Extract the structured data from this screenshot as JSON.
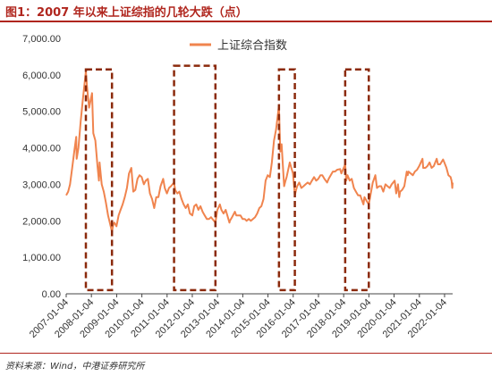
{
  "figure": {
    "title": "图1：2007 年以来上证综指的几轮大跌（点）",
    "source": "资料来源：Wind，中港证券研究所"
  },
  "colors": {
    "accent": "#b0261e",
    "line": "#f0844e",
    "box": "#8b2a0c"
  },
  "chart_data": {
    "type": "line",
    "title": "图1：2007 年以来上证综指的几轮大跌（点）",
    "xlabel": "",
    "ylabel": "",
    "x_ticks": [
      "2007-01-04",
      "2008-01-04",
      "2009-01-04",
      "2010-01-04",
      "2011-01-04",
      "2012-01-04",
      "2013-01-04",
      "2014-01-04",
      "2015-01-04",
      "2016-01-04",
      "2017-01-04",
      "2018-01-04",
      "2019-01-04",
      "2020-01-04",
      "2021-01-04",
      "2022-01-04"
    ],
    "y_ticks": [
      "0.00",
      "1,000.00",
      "2,000.00",
      "3,000.00",
      "4,000.00",
      "5,000.00",
      "6,000.00",
      "7,000.00"
    ],
    "ylim": [
      0,
      7000
    ],
    "xlim": [
      "2007-01-04",
      "2022-05-01"
    ],
    "legend_position": "top-center",
    "grid": false,
    "series": [
      {
        "name": "上证综合指数",
        "points": [
          [
            "2007-01-04",
            2700
          ],
          [
            "2007-02-01",
            2800
          ],
          [
            "2007-03-01",
            3000
          ],
          [
            "2007-04-01",
            3450
          ],
          [
            "2007-05-01",
            3900
          ],
          [
            "2007-05-29",
            4300
          ],
          [
            "2007-06-05",
            3700
          ],
          [
            "2007-07-01",
            4000
          ],
          [
            "2007-08-01",
            4700
          ],
          [
            "2007-09-01",
            5300
          ],
          [
            "2007-10-16",
            6100
          ],
          [
            "2007-11-01",
            5700
          ],
          [
            "2007-12-01",
            5100
          ],
          [
            "2008-01-14",
            5500
          ],
          [
            "2008-02-01",
            4400
          ],
          [
            "2008-03-01",
            4200
          ],
          [
            "2008-04-01",
            3500
          ],
          [
            "2008-04-22",
            3100
          ],
          [
            "2008-05-01",
            3600
          ],
          [
            "2008-06-01",
            3000
          ],
          [
            "2008-07-01",
            2800
          ],
          [
            "2008-08-01",
            2500
          ],
          [
            "2008-09-01",
            2150
          ],
          [
            "2008-10-28",
            1700
          ],
          [
            "2008-11-15",
            1900
          ],
          [
            "2008-12-01",
            1950
          ],
          [
            "2009-01-01",
            1850
          ],
          [
            "2009-02-01",
            2150
          ],
          [
            "2009-03-01",
            2300
          ],
          [
            "2009-04-01",
            2450
          ],
          [
            "2009-05-01",
            2650
          ],
          [
            "2009-06-01",
            2900
          ],
          [
            "2009-07-01",
            3300
          ],
          [
            "2009-08-04",
            3450
          ],
          [
            "2009-09-01",
            2800
          ],
          [
            "2009-10-01",
            2850
          ],
          [
            "2009-11-01",
            3150
          ],
          [
            "2009-12-01",
            3250
          ],
          [
            "2010-01-01",
            3200
          ],
          [
            "2010-02-01",
            3000
          ],
          [
            "2010-03-01",
            3100
          ],
          [
            "2010-04-01",
            3150
          ],
          [
            "2010-05-01",
            2750
          ],
          [
            "2010-06-01",
            2600
          ],
          [
            "2010-07-02",
            2350
          ],
          [
            "2010-08-01",
            2650
          ],
          [
            "2010-09-01",
            2650
          ],
          [
            "2010-10-01",
            2950
          ],
          [
            "2010-11-08",
            3150
          ],
          [
            "2010-12-01",
            2900
          ],
          [
            "2011-01-01",
            2750
          ],
          [
            "2011-02-01",
            2900
          ],
          [
            "2011-03-01",
            2950
          ],
          [
            "2011-04-15",
            3050
          ],
          [
            "2011-05-01",
            2850
          ],
          [
            "2011-06-01",
            2750
          ],
          [
            "2011-07-01",
            2800
          ],
          [
            "2011-08-01",
            2600
          ],
          [
            "2011-09-01",
            2450
          ],
          [
            "2011-10-01",
            2350
          ],
          [
            "2011-11-01",
            2450
          ],
          [
            "2011-12-01",
            2200
          ],
          [
            "2012-01-04",
            2150
          ],
          [
            "2012-02-01",
            2400
          ],
          [
            "2012-03-01",
            2450
          ],
          [
            "2012-04-01",
            2300
          ],
          [
            "2012-05-01",
            2400
          ],
          [
            "2012-06-01",
            2250
          ],
          [
            "2012-07-01",
            2150
          ],
          [
            "2012-08-01",
            2050
          ],
          [
            "2012-09-01",
            2050
          ],
          [
            "2012-10-01",
            2100
          ],
          [
            "2012-12-04",
            1950
          ],
          [
            "2013-01-01",
            2300
          ],
          [
            "2013-02-06",
            2450
          ],
          [
            "2013-03-01",
            2300
          ],
          [
            "2013-04-01",
            2200
          ],
          [
            "2013-05-01",
            2300
          ],
          [
            "2013-06-25",
            1950
          ],
          [
            "2013-07-01",
            2000
          ],
          [
            "2013-08-01",
            2100
          ],
          [
            "2013-09-12",
            2250
          ],
          [
            "2013-10-01",
            2150
          ],
          [
            "2013-11-01",
            2150
          ],
          [
            "2013-12-01",
            2150
          ],
          [
            "2014-01-01",
            2050
          ],
          [
            "2014-02-01",
            2050
          ],
          [
            "2014-03-01",
            2000
          ],
          [
            "2014-04-01",
            2050
          ],
          [
            "2014-05-01",
            2000
          ],
          [
            "2014-06-01",
            2050
          ],
          [
            "2014-07-01",
            2100
          ],
          [
            "2014-08-01",
            2200
          ],
          [
            "2014-09-01",
            2350
          ],
          [
            "2014-10-01",
            2400
          ],
          [
            "2014-11-01",
            2600
          ],
          [
            "2014-12-01",
            3100
          ],
          [
            "2015-01-01",
            3250
          ],
          [
            "2015-02-01",
            3200
          ],
          [
            "2015-03-01",
            3600
          ],
          [
            "2015-04-01",
            4200
          ],
          [
            "2015-05-01",
            4500
          ],
          [
            "2015-06-12",
            5150
          ],
          [
            "2015-07-01",
            3900
          ],
          [
            "2015-07-20",
            4100
          ],
          [
            "2015-08-26",
            2950
          ],
          [
            "2015-09-15",
            3100
          ],
          [
            "2015-10-01",
            3200
          ],
          [
            "2015-11-15",
            3600
          ],
          [
            "2015-12-01",
            3500
          ],
          [
            "2016-01-01",
            3300
          ],
          [
            "2016-01-28",
            2700
          ],
          [
            "2016-02-15",
            2850
          ],
          [
            "2016-03-01",
            2950
          ],
          [
            "2016-04-01",
            3050
          ],
          [
            "2016-05-01",
            2900
          ],
          [
            "2016-06-01",
            2950
          ],
          [
            "2016-07-01",
            3000
          ],
          [
            "2016-08-01",
            3050
          ],
          [
            "2016-09-01",
            3000
          ],
          [
            "2016-10-01",
            3100
          ],
          [
            "2016-11-01",
            3200
          ],
          [
            "2016-12-01",
            3100
          ],
          [
            "2017-01-01",
            3150
          ],
          [
            "2017-02-01",
            3250
          ],
          [
            "2017-03-01",
            3250
          ],
          [
            "2017-04-01",
            3150
          ],
          [
            "2017-05-10",
            3050
          ],
          [
            "2017-06-01",
            3150
          ],
          [
            "2017-07-01",
            3250
          ],
          [
            "2017-08-01",
            3350
          ],
          [
            "2017-09-01",
            3350
          ],
          [
            "2017-10-01",
            3400
          ],
          [
            "2017-11-14",
            3420
          ],
          [
            "2017-12-01",
            3300
          ],
          [
            "2018-01-26",
            3550
          ],
          [
            "2018-02-09",
            3100
          ],
          [
            "2018-03-01",
            3250
          ],
          [
            "2018-04-01",
            3100
          ],
          [
            "2018-05-01",
            3150
          ],
          [
            "2018-06-01",
            2900
          ],
          [
            "2018-07-01",
            2800
          ],
          [
            "2018-08-01",
            2700
          ],
          [
            "2018-09-01",
            2700
          ],
          [
            "2018-10-18",
            2450
          ],
          [
            "2018-11-01",
            2650
          ],
          [
            "2018-12-01",
            2550
          ],
          [
            "2019-01-03",
            2450
          ],
          [
            "2019-02-01",
            2750
          ],
          [
            "2019-03-01",
            3050
          ],
          [
            "2019-04-08",
            3250
          ],
          [
            "2019-05-01",
            2900
          ],
          [
            "2019-06-01",
            2950
          ],
          [
            "2019-07-01",
            2950
          ],
          [
            "2019-08-01",
            2800
          ],
          [
            "2019-09-01",
            3000
          ],
          [
            "2019-10-01",
            2950
          ],
          [
            "2019-11-01",
            2900
          ],
          [
            "2019-12-01",
            3000
          ],
          [
            "2020-01-13",
            3100
          ],
          [
            "2020-02-03",
            2750
          ],
          [
            "2020-03-01",
            3000
          ],
          [
            "2020-03-19",
            2650
          ],
          [
            "2020-04-01",
            2800
          ],
          [
            "2020-05-01",
            2850
          ],
          [
            "2020-06-01",
            2950
          ],
          [
            "2020-07-06",
            3350
          ],
          [
            "2020-07-20",
            3250
          ],
          [
            "2020-08-01",
            3350
          ],
          [
            "2020-09-01",
            3300
          ],
          [
            "2020-10-01",
            3250
          ],
          [
            "2020-11-01",
            3350
          ],
          [
            "2020-12-01",
            3400
          ],
          [
            "2021-01-01",
            3500
          ],
          [
            "2021-02-18",
            3700
          ],
          [
            "2021-03-01",
            3450
          ],
          [
            "2021-04-01",
            3450
          ],
          [
            "2021-05-01",
            3500
          ],
          [
            "2021-06-01",
            3600
          ],
          [
            "2021-07-01",
            3450
          ],
          [
            "2021-08-01",
            3500
          ],
          [
            "2021-09-13",
            3700
          ],
          [
            "2021-10-01",
            3550
          ],
          [
            "2021-11-01",
            3550
          ],
          [
            "2021-12-13",
            3680
          ],
          [
            "2022-01-01",
            3600
          ],
          [
            "2022-02-01",
            3450
          ],
          [
            "2022-03-01",
            3250
          ],
          [
            "2022-04-01",
            3200
          ],
          [
            "2022-04-15",
            3100
          ],
          [
            "2022-04-26",
            2900
          ],
          [
            "2022-05-01",
            3050
          ]
        ]
      }
    ],
    "annotations": [
      {
        "kind": "dashed-box",
        "x_start": "2007-10-16",
        "x_end": "2008-10-28",
        "y_top": 6150,
        "y_bottom": 100
      },
      {
        "kind": "dashed-box",
        "x_start": "2011-04-15",
        "x_end": "2012-12-04",
        "y_top": 6250,
        "y_bottom": 100
      },
      {
        "kind": "dashed-box",
        "x_start": "2015-06-12",
        "x_end": "2016-01-28",
        "y_top": 6150,
        "y_bottom": 100
      },
      {
        "kind": "dashed-box",
        "x_start": "2018-01-26",
        "x_end": "2019-01-03",
        "y_top": 6150,
        "y_bottom": 100
      }
    ]
  }
}
